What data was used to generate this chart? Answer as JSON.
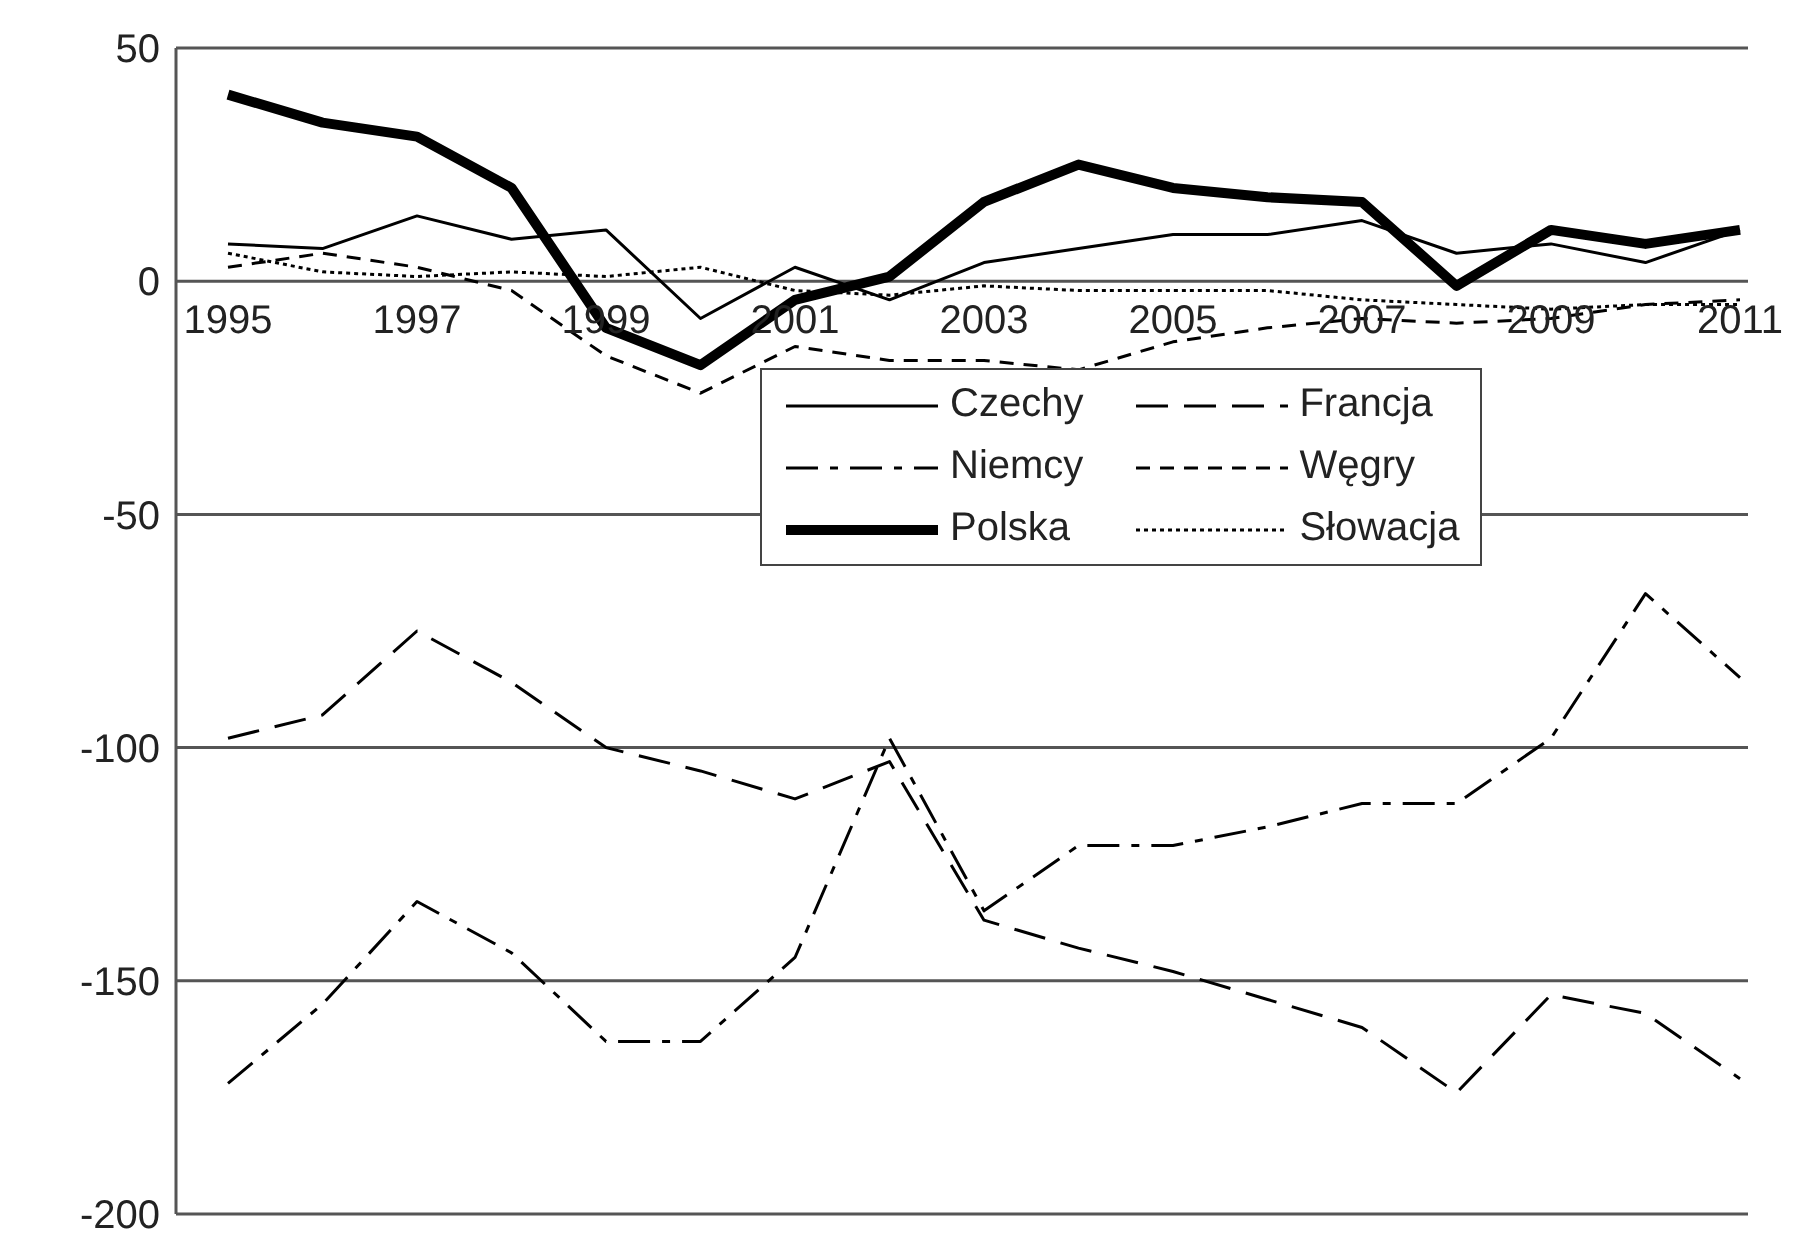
{
  "chart_data": {
    "type": "line",
    "categories": [
      "1995",
      null,
      "1997",
      null,
      "1999",
      null,
      "2001",
      null,
      "2003",
      null,
      "2005",
      null,
      "2007",
      null,
      "2009",
      null,
      "2011"
    ],
    "series": [
      {
        "name": "Czechy",
        "color": "#000000",
        "line_style": "solid",
        "values": [
          8,
          7,
          14,
          9,
          11,
          -8,
          3,
          -4,
          4,
          7,
          10,
          10,
          13,
          6,
          8,
          4,
          11
        ]
      },
      {
        "name": "Francja",
        "color": "#000000",
        "line_style": "longdash",
        "values": [
          -98,
          -93,
          -75,
          -86,
          -100,
          -105,
          -111,
          -103,
          -137,
          -143,
          -148,
          -154,
          -160,
          -174,
          -153,
          -157,
          -171
        ]
      },
      {
        "name": "Niemcy",
        "color": "#000000",
        "line_style": "dashdot",
        "values": [
          -172,
          -155,
          -133,
          -144,
          -163,
          -163,
          -145,
          -98,
          -135,
          -121,
          -121,
          -117,
          -112,
          -112,
          -98,
          -67,
          -85
        ]
      },
      {
        "name": "Węgry",
        "color": "#000000",
        "line_style": "dashed",
        "values": [
          3,
          6,
          3,
          -2,
          -16,
          -24,
          -14,
          -17,
          -17,
          -19,
          -13,
          -10,
          -8,
          -9,
          -8,
          -5,
          -4
        ]
      },
      {
        "name": "Polska",
        "color": "#000000",
        "line_style": "solid",
        "values": [
          40,
          34,
          31,
          20,
          -10,
          -18,
          -4,
          1,
          17,
          25,
          20,
          18,
          17,
          -1,
          11,
          8,
          11
        ]
      },
      {
        "name": "Słowacja",
        "color": "#000000",
        "line_style": "dotted",
        "values": [
          6,
          2,
          1,
          2,
          1,
          3,
          -2,
          -3,
          -1,
          -2,
          -2,
          -2,
          -4,
          -5,
          -6,
          -5,
          -5
        ]
      }
    ],
    "ylim": [
      -200,
      50
    ],
    "yticks": [
      -200,
      -150,
      -100,
      -50,
      0,
      50
    ],
    "grid": "y",
    "legend": "center",
    "marker": "none"
  }
}
